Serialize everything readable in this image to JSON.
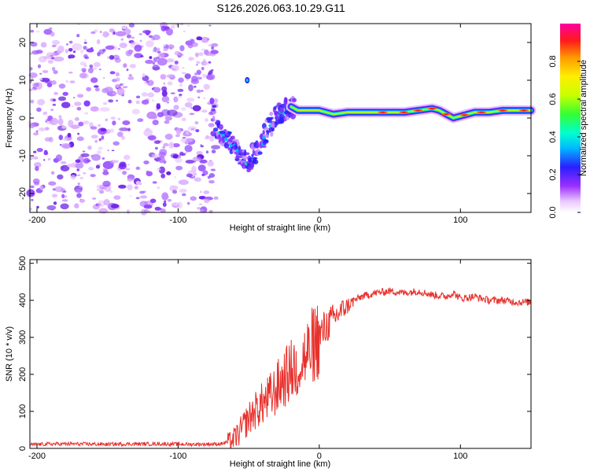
{
  "title": "S126.2026.063.10.29.G11",
  "chart_data": [
    {
      "type": "heatmap",
      "name": "spectrogram",
      "title": "S126.2026.063.10.29.G11",
      "xlabel": "Height of straight line (km)",
      "ylabel": "Frequency (Hz)",
      "xlim": [
        -205,
        150
      ],
      "ylim": [
        -25,
        25
      ],
      "xticks": [
        -200,
        -100,
        0,
        100
      ],
      "yticks": [
        20,
        10,
        0,
        -10,
        -20
      ],
      "noise_region_x": [
        -205,
        -73
      ],
      "signal_track": {
        "x": [
          -75,
          -70,
          -65,
          -60,
          -55,
          -50,
          -45,
          -40,
          -35,
          -30,
          -25,
          -20,
          -15,
          -10,
          -5,
          0,
          10,
          20,
          40,
          60,
          70,
          80,
          85,
          90,
          95,
          100,
          110,
          120,
          130,
          140,
          150
        ],
        "freq": [
          -2,
          -4,
          -6,
          -8,
          -10,
          -12,
          -9,
          -6,
          -2,
          1,
          2,
          3,
          2,
          2,
          2,
          2,
          1,
          1.5,
          1.5,
          1.5,
          2,
          2.5,
          2,
          1,
          0,
          0.5,
          1.5,
          1.5,
          2,
          2,
          2
        ]
      },
      "colorbar": {
        "label": "Normalized spectral amplitude",
        "range": [
          0,
          1
        ],
        "ticks": [
          0.0,
          0.2,
          0.4,
          0.6,
          0.8
        ],
        "tick_labels": [
          "0.0",
          "0.2",
          "0.4",
          "0.6",
          "0.8"
        ]
      }
    },
    {
      "type": "line",
      "name": "snr",
      "xlabel": "Height of straight line (km)",
      "ylabel": "SNR (10 * v/v)",
      "xlim": [
        -205,
        150
      ],
      "ylim": [
        0,
        510
      ],
      "xticks": [
        -200,
        -100,
        0,
        100
      ],
      "yticks": [
        0,
        100,
        200,
        300,
        400,
        500
      ],
      "series": [
        {
          "name": "SNR",
          "color": "#e8312c",
          "x": [
            -205,
            -190,
            -170,
            -150,
            -130,
            -110,
            -90,
            -70,
            -62,
            -57,
            -52,
            -47,
            -42,
            -37,
            -32,
            -27,
            -22,
            -17,
            -12,
            -9,
            -6,
            -3,
            0,
            5,
            10,
            15,
            20,
            25,
            30,
            40,
            50,
            60,
            70,
            80,
            90,
            95,
            100,
            110,
            120,
            130,
            140,
            150
          ],
          "y": [
            10,
            12,
            12,
            11,
            12,
            12,
            11,
            12,
            20,
            40,
            70,
            95,
            115,
            130,
            150,
            180,
            200,
            220,
            240,
            250,
            270,
            290,
            300,
            330,
            350,
            370,
            385,
            400,
            410,
            420,
            425,
            420,
            425,
            415,
            410,
            420,
            405,
            410,
            400,
            400,
            395,
            395
          ]
        }
      ]
    }
  ]
}
